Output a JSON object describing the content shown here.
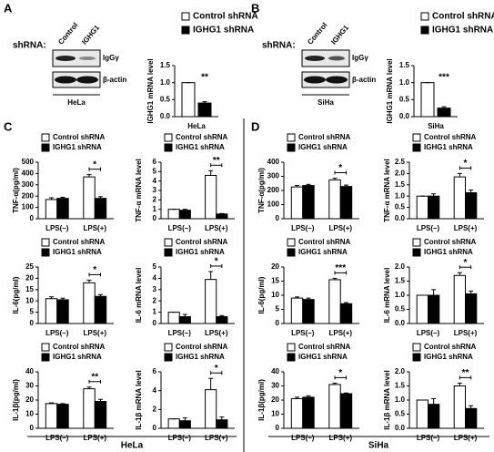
{
  "figure": {
    "panels": [
      "A",
      "B",
      "C",
      "D"
    ],
    "blots": [
      {
        "prefix": "shRNA:",
        "lanes": [
          "Control",
          "IGHG1"
        ],
        "bands": [
          "IgGγ",
          "β-actin"
        ],
        "cell_line": "HeLa"
      },
      {
        "prefix": "shRNA:",
        "lanes": [
          "Control",
          "IGHG1"
        ],
        "bands": [
          "IgGγ",
          "β-actin"
        ],
        "cell_line": "SiHa"
      }
    ],
    "footers": [
      "HeLa",
      "SiHa"
    ]
  },
  "chart_data": [
    {
      "type": "bar",
      "ylabel": "IGHG1 mRNA level",
      "xlabel": "HeLa",
      "categories": [
        null
      ],
      "annotation": "**",
      "ylim": [
        0,
        1.5
      ],
      "yticks": [
        {
          "value": 0,
          "label": "0.0"
        },
        0.5,
        {
          "value": 1,
          "label": "1.0"
        },
        1.5
      ],
      "series": [
        {
          "name": "Control shRNA",
          "color": "#ffffff",
          "values": [
            1.0
          ],
          "errors": [
            0.0
          ]
        },
        {
          "name": "IGHG1 shRNA",
          "color": "#000000",
          "values": [
            0.4
          ],
          "errors": [
            0.04
          ]
        }
      ]
    },
    {
      "type": "bar",
      "ylabel": "IGHG1 mRNA level",
      "xlabel": "SiHa",
      "categories": [
        null
      ],
      "annotation": "***",
      "ylim": [
        0,
        1.5
      ],
      "yticks": [
        {
          "value": 0,
          "label": "0.0"
        },
        0.5,
        {
          "value": 1,
          "label": "1.0"
        },
        1.5
      ],
      "series": [
        {
          "name": "Control shRNA",
          "color": "#ffffff",
          "values": [
            1.0
          ],
          "errors": [
            0.0
          ]
        },
        {
          "name": "IGHG1 shRNA",
          "color": "#000000",
          "values": [
            0.25
          ],
          "errors": [
            0.04
          ]
        }
      ]
    },
    {
      "type": "bar",
      "ylabel": "TNF-α(pg/ml)",
      "categories": [
        "LPS(–)",
        "LPS(+)"
      ],
      "annotation": "*",
      "ylim": [
        0,
        500
      ],
      "yticks": [
        0,
        100,
        200,
        300,
        400,
        500
      ],
      "series": [
        {
          "name": "Control shRNA",
          "color": "#ffffff",
          "values": [
            170,
            370
          ],
          "errors": [
            15,
            20
          ]
        },
        {
          "name": "IGHG1 shRNA",
          "color": "#000000",
          "values": [
            180,
            180
          ],
          "errors": [
            10,
            15
          ]
        }
      ]
    },
    {
      "type": "bar",
      "ylabel": "TNF-α mRNA level",
      "categories": [
        "LPS(–)",
        "LPS(+)"
      ],
      "annotation": "**",
      "ylim": [
        0,
        6
      ],
      "yticks": [
        0,
        1,
        2,
        3,
        4,
        5,
        6
      ],
      "series": [
        {
          "name": "Control shRNA",
          "color": "#ffffff",
          "values": [
            1.0,
            4.6
          ],
          "errors": [
            0.0,
            0.5
          ]
        },
        {
          "name": "IGHG1 shRNA",
          "color": "#000000",
          "values": [
            0.9,
            0.5
          ],
          "errors": [
            0.1,
            0.05
          ]
        }
      ]
    },
    {
      "type": "bar",
      "ylabel": "IL-6(pg/ml)",
      "categories": [
        "LPS(–)",
        "LPS(+)"
      ],
      "annotation": "*",
      "ylim": [
        0,
        25
      ],
      "yticks": [
        0,
        5,
        10,
        15,
        20,
        25
      ],
      "series": [
        {
          "name": "Control shRNA",
          "color": "#ffffff",
          "values": [
            11,
            18
          ],
          "errors": [
            0.8,
            1.2
          ]
        },
        {
          "name": "IGHG1 shRNA",
          "color": "#000000",
          "values": [
            10.5,
            12
          ],
          "errors": [
            0.7,
            0.8
          ]
        }
      ]
    },
    {
      "type": "bar",
      "ylabel": "IL-6 mRNA level",
      "categories": [
        "LPS(–)",
        "LPS(+)"
      ],
      "annotation": "*",
      "ylim": [
        0,
        5
      ],
      "yticks": [
        0,
        1,
        2,
        3,
        4,
        5
      ],
      "series": [
        {
          "name": "Control shRNA",
          "color": "#ffffff",
          "values": [
            1.0,
            3.9
          ],
          "errors": [
            0.0,
            0.7
          ]
        },
        {
          "name": "IGHG1 shRNA",
          "color": "#000000",
          "values": [
            0.6,
            0.6
          ],
          "errors": [
            0.2,
            0.1
          ]
        }
      ]
    },
    {
      "type": "bar",
      "ylabel": "IL-1β(pg/ml)",
      "categories": [
        "LPS(–)",
        "LPS(+)"
      ],
      "annotation": "**",
      "ylim": [
        0,
        40
      ],
      "yticks": [
        0,
        10,
        20,
        30,
        40
      ],
      "series": [
        {
          "name": "Control shRNA",
          "color": "#ffffff",
          "values": [
            17.5,
            28
          ],
          "errors": [
            0.5,
            1.2
          ]
        },
        {
          "name": "IGHG1 shRNA",
          "color": "#000000",
          "values": [
            17,
            19
          ],
          "errors": [
            0.5,
            1.5
          ]
        }
      ]
    },
    {
      "type": "bar",
      "ylabel": "IL-1β mRNA level",
      "categories": [
        "LPS(–)",
        "LPS(+)"
      ],
      "annotation": "*",
      "ylim": [
        0,
        6
      ],
      "yticks": [
        0,
        2,
        4,
        6
      ],
      "series": [
        {
          "name": "Control shRNA",
          "color": "#ffffff",
          "values": [
            1.0,
            4.1
          ],
          "errors": [
            0.0,
            1.2
          ]
        },
        {
          "name": "IGHG1 shRNA",
          "color": "#000000",
          "values": [
            0.8,
            0.9
          ],
          "errors": [
            0.3,
            0.3
          ]
        }
      ]
    },
    {
      "type": "bar",
      "ylabel": "TNF-α(pg/ml)",
      "categories": [
        "LPS(–)",
        "LPS(+)"
      ],
      "annotation": "*",
      "ylim": [
        0,
        400
      ],
      "yticks": [
        0,
        100,
        200,
        300,
        400
      ],
      "series": [
        {
          "name": "Control shRNA",
          "color": "#ffffff",
          "values": [
            225,
            275
          ],
          "errors": [
            10,
            12
          ]
        },
        {
          "name": "IGHG1 shRNA",
          "color": "#000000",
          "values": [
            235,
            228
          ],
          "errors": [
            8,
            10
          ]
        }
      ]
    },
    {
      "type": "bar",
      "ylabel": "TNF-α mRNA level",
      "categories": [
        "LPS(–)",
        "LPS(+)"
      ],
      "annotation": "*",
      "ylim": [
        0,
        2.5
      ],
      "yticks": [
        {
          "value": 0,
          "label": "0.0"
        },
        0.5,
        {
          "value": 1,
          "label": "1.0"
        },
        1.5,
        {
          "value": 2,
          "label": "2.0"
        },
        2.5
      ],
      "series": [
        {
          "name": "Control shRNA",
          "color": "#ffffff",
          "values": [
            1.0,
            1.85
          ],
          "errors": [
            0.0,
            0.15
          ]
        },
        {
          "name": "IGHG1 shRNA",
          "color": "#000000",
          "values": [
            1.0,
            1.15
          ],
          "errors": [
            0.1,
            0.12
          ]
        }
      ]
    },
    {
      "type": "bar",
      "ylabel": "IL-6(pg/ml)",
      "categories": [
        "LPS(–)",
        "LPS(+)"
      ],
      "annotation": "***",
      "ylim": [
        0,
        20
      ],
      "yticks": [
        0,
        5,
        10,
        15,
        20
      ],
      "series": [
        {
          "name": "Control shRNA",
          "color": "#ffffff",
          "values": [
            9,
            15.5
          ],
          "errors": [
            0.4,
            0.5
          ]
        },
        {
          "name": "IGHG1 shRNA",
          "color": "#000000",
          "values": [
            8.5,
            7
          ],
          "errors": [
            0.5,
            0.4
          ]
        }
      ]
    },
    {
      "type": "bar",
      "ylabel": "IL-6 mRNA level",
      "categories": [
        "LPS(–)",
        "LPS(+)"
      ],
      "annotation": "*",
      "ylim": [
        0,
        2.0
      ],
      "yticks": [
        {
          "value": 0,
          "label": "0.0"
        },
        0.5,
        {
          "value": 1,
          "label": "1.0"
        },
        1.5,
        {
          "value": 2,
          "label": "2.0"
        }
      ],
      "series": [
        {
          "name": "Control shRNA",
          "color": "#ffffff",
          "values": [
            1.0,
            1.7
          ],
          "errors": [
            0.0,
            0.1
          ]
        },
        {
          "name": "IGHG1 shRNA",
          "color": "#000000",
          "values": [
            1.0,
            1.05
          ],
          "errors": [
            0.2,
            0.1
          ]
        }
      ]
    },
    {
      "type": "bar",
      "ylabel": "IL-1β(pg/ml)",
      "categories": [
        "LPS(–)",
        "LPS(+)"
      ],
      "annotation": "*",
      "ylim": [
        0,
        40
      ],
      "yticks": [
        0,
        10,
        20,
        30,
        40
      ],
      "series": [
        {
          "name": "Control shRNA",
          "color": "#ffffff",
          "values": [
            21,
            31
          ],
          "errors": [
            1,
            1
          ]
        },
        {
          "name": "IGHG1 shRNA",
          "color": "#000000",
          "values": [
            22,
            24.5
          ],
          "errors": [
            1,
            0.5
          ]
        }
      ]
    },
    {
      "type": "bar",
      "ylabel": "IL-1β mRNA level",
      "categories": [
        "LPS(–)",
        "LPS(+)"
      ],
      "annotation": "**",
      "ylim": [
        0,
        2.0
      ],
      "yticks": [
        {
          "value": 0,
          "label": "0.0"
        },
        0.5,
        {
          "value": 1,
          "label": "1.0"
        },
        1.5,
        {
          "value": 2,
          "label": "2.0"
        }
      ],
      "series": [
        {
          "name": "Control shRNA",
          "color": "#ffffff",
          "values": [
            1.0,
            1.5
          ],
          "errors": [
            0.0,
            0.1
          ]
        },
        {
          "name": "IGHG1 shRNA",
          "color": "#000000",
          "values": [
            0.85,
            0.7
          ],
          "errors": [
            0.2,
            0.1
          ]
        }
      ]
    }
  ]
}
